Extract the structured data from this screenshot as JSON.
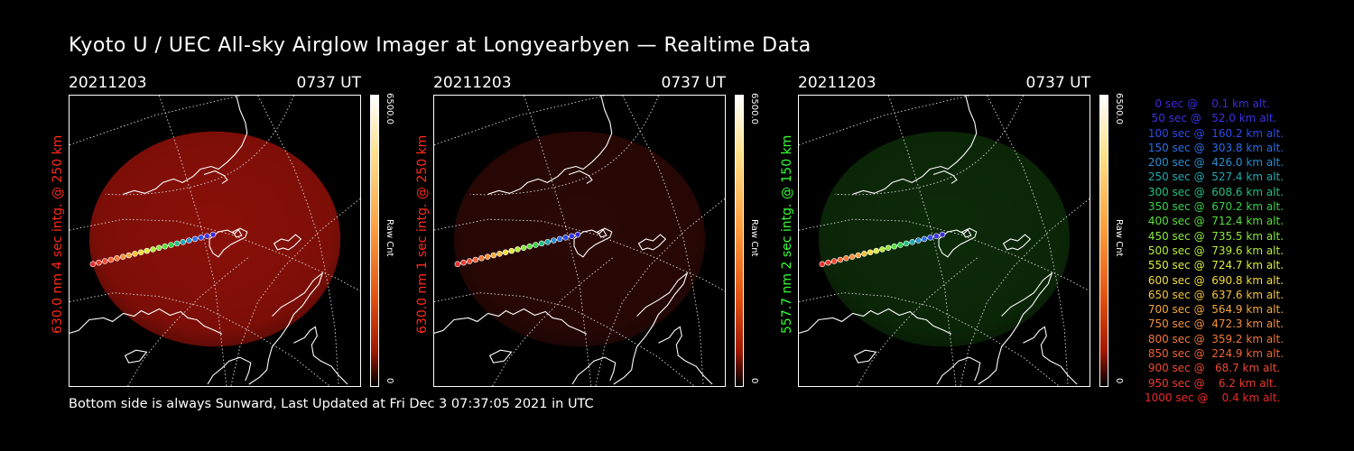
{
  "title": "Kyoto U / UEC All-sky Airglow Imager at Longyearbyen — Realtime Data",
  "footer": "Bottom side is always Sunward, Last Updated at Fri Dec  3 07:37:05 2021 in UTC",
  "panels": [
    {
      "date": "20211203",
      "time": "0737 UT",
      "ylabel": "630.0 nm  4 sec intg. @ 250 km",
      "ylabel_color": "#ff2a1a",
      "cbar_max": "6500.0",
      "cbar_unit": "Raw Cnt",
      "cbar_min": "0",
      "glow_color": "#8a1008"
    },
    {
      "date": "20211203",
      "time": "0737 UT",
      "ylabel": "630.0 nm  1 sec intg. @ 250 km",
      "ylabel_color": "#ff2a1a",
      "cbar_max": "6500.0",
      "cbar_unit": "Raw Cnt",
      "cbar_min": "0",
      "glow_color": "#2a0805"
    },
    {
      "date": "20211203",
      "time": "0737 UT",
      "ylabel": "557.7 nm  2 sec intg. @ 150 km",
      "ylabel_color": "#33ff33",
      "cbar_max": "6500.0",
      "cbar_unit": "Raw Cnt",
      "cbar_min": "0",
      "glow_color": "#0c2a08"
    }
  ],
  "legend": [
    {
      "text": "   0 sec @    0.1 km alt.",
      "color": "#3b2bd9"
    },
    {
      "text": "  50 sec @   52.0 km alt.",
      "color": "#3a33e6"
    },
    {
      "text": " 100 sec @  160.2 km alt.",
      "color": "#2d4bea"
    },
    {
      "text": " 150 sec @  303.8 km alt.",
      "color": "#2b6ee8"
    },
    {
      "text": " 200 sec @  426.0 km alt.",
      "color": "#2a8fd0"
    },
    {
      "text": " 250 sec @  527.4 km alt.",
      "color": "#22a9b0"
    },
    {
      "text": " 300 sec @  608.6 km alt.",
      "color": "#20c080"
    },
    {
      "text": " 350 sec @  670.2 km alt.",
      "color": "#33d24a"
    },
    {
      "text": " 400 sec @  712.4 km alt.",
      "color": "#58e03a"
    },
    {
      "text": " 450 sec @  735.5 km alt.",
      "color": "#8ae83a"
    },
    {
      "text": " 500 sec @  739.6 km alt.",
      "color": "#b8ec3a"
    },
    {
      "text": " 550 sec @  724.7 km alt.",
      "color": "#dcec3a"
    },
    {
      "text": " 600 sec @  690.8 km alt.",
      "color": "#f2dc3a"
    },
    {
      "text": " 650 sec @  637.6 km alt.",
      "color": "#f4c23a"
    },
    {
      "text": " 700 sec @  564.9 km alt.",
      "color": "#f4a83a"
    },
    {
      "text": " 750 sec @  472.3 km alt.",
      "color": "#f4903a"
    },
    {
      "text": " 800 sec @  359.2 km alt.",
      "color": "#f27838"
    },
    {
      "text": " 850 sec @  224.9 km alt.",
      "color": "#f06234"
    },
    {
      "text": " 900 sec @   68.7 km alt.",
      "color": "#ee4a30"
    },
    {
      "text": " 950 sec @    6.2 km alt.",
      "color": "#ec3a2c"
    },
    {
      "text": "1000 sec @    0.4 km alt.",
      "color": "#ea2a28"
    }
  ]
}
